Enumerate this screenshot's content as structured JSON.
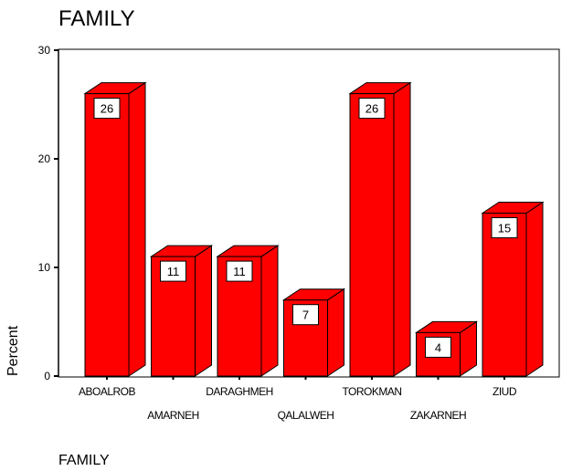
{
  "chart_data": {
    "type": "bar",
    "title": "FAMILY",
    "xlabel": "FAMILY",
    "ylabel": "Percent",
    "categories": [
      "ABOALROB",
      "AMARNEH",
      "DARAGHMEH",
      "QALALWEH",
      "TOROKMAN",
      "ZAKARNEH",
      "ZIUD"
    ],
    "values": [
      26,
      11,
      11,
      7,
      26,
      4,
      15
    ],
    "data_labels": [
      "26",
      "11",
      "11",
      "7",
      "26",
      "4",
      "15"
    ],
    "yticks": [
      "0",
      "10",
      "20",
      "30"
    ],
    "ylim": [
      0,
      30
    ],
    "grid": false,
    "legend": "none",
    "bar_color": "#ff0000",
    "edge_color": "#000000"
  }
}
